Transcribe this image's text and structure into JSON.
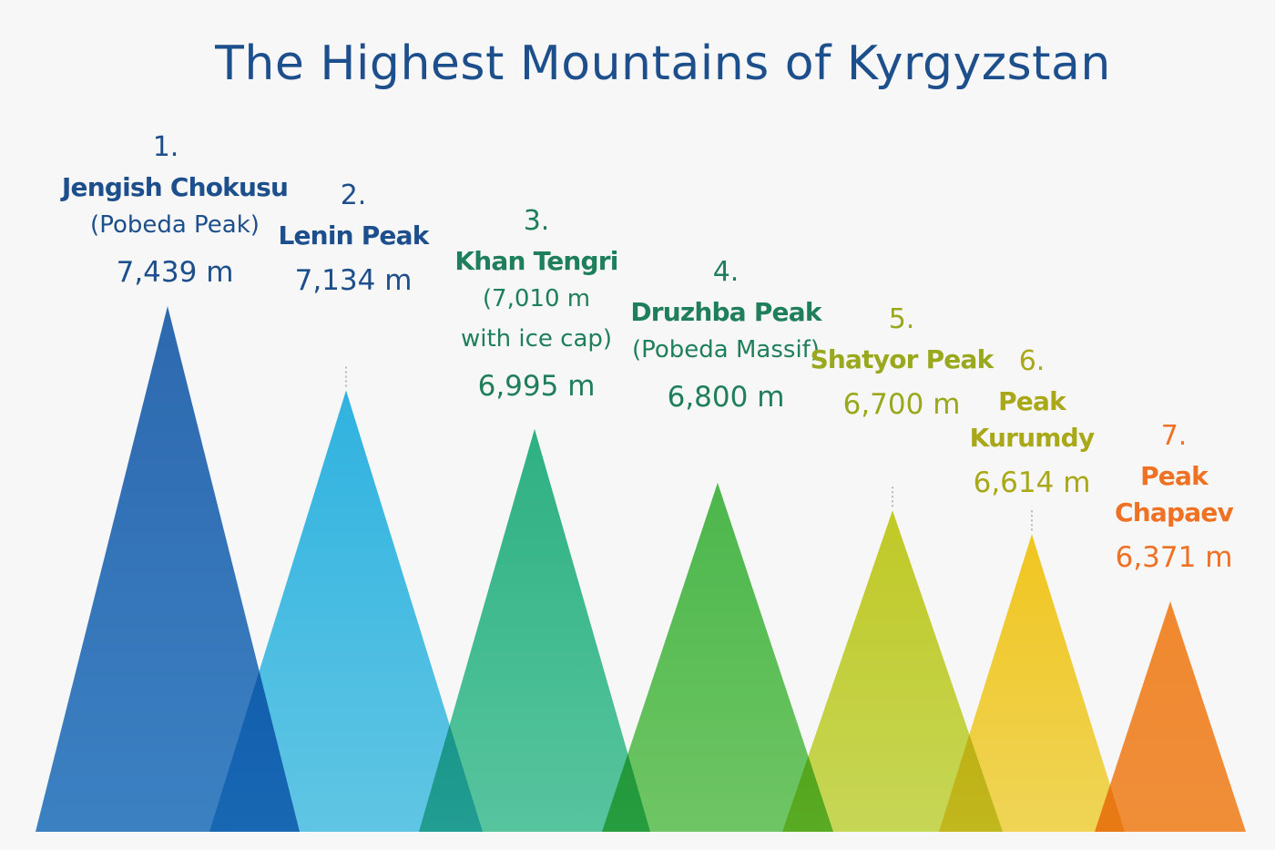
{
  "title": "The Highest Mountains of Kyrgyzstan",
  "chart_data": {
    "type": "bar",
    "title": "The Highest Mountains of Kyrgyzstan",
    "unit": "m",
    "categories": [
      "Jengish Chokusu",
      "Lenin Peak",
      "Khan Tengri",
      "Druzhba Peak",
      "Shatyor Peak",
      "Peak Kurumdy",
      "Peak Chapaev"
    ],
    "values": [
      7439,
      7134,
      6995,
      6800,
      6700,
      6614,
      6371
    ],
    "ranks": [
      "1.",
      "2.",
      "3.",
      "4.",
      "5.",
      "6.",
      "7."
    ],
    "name_lines": [
      [
        "Jengish Chokusu"
      ],
      [
        "Lenin Peak"
      ],
      [
        "Khan Tengri"
      ],
      [
        "Druzhba Peak"
      ],
      [
        "Shatyor Peak"
      ],
      [
        "Peak",
        "Kurumdy"
      ],
      [
        "Peak",
        "Chapaev"
      ]
    ],
    "notes": [
      [
        "(Pobeda Peak)"
      ],
      [],
      [
        "(7,010 m",
        "with ice cap)"
      ],
      [
        "(Pobeda Massif)"
      ],
      [],
      [],
      []
    ],
    "value_labels": [
      "7,439 m",
      "7,134 m",
      "6,995 m",
      "6,800 m",
      "6,700 m",
      "6,614 m",
      "6,371 m"
    ],
    "colors": {
      "peak_tops": [
        "#1c5fae",
        "#1fb2e6",
        "#1db07c",
        "#3fb63f",
        "#c2cc14",
        "#f8c80e",
        "#f7821e"
      ],
      "peak_bottoms": [
        "#2d7bc4",
        "#56c8ea",
        "#4cc79c",
        "#66c85a",
        "#c9da4a",
        "#f6d84a",
        "#f88a2a"
      ],
      "label_colors": [
        "#1d4f8c",
        "#1d4f8c",
        "#1f7f5c",
        "#1f7f5c",
        "#9aa81e",
        "#a9a819",
        "#ee7124"
      ],
      "title": "#1d4f8c"
    }
  }
}
